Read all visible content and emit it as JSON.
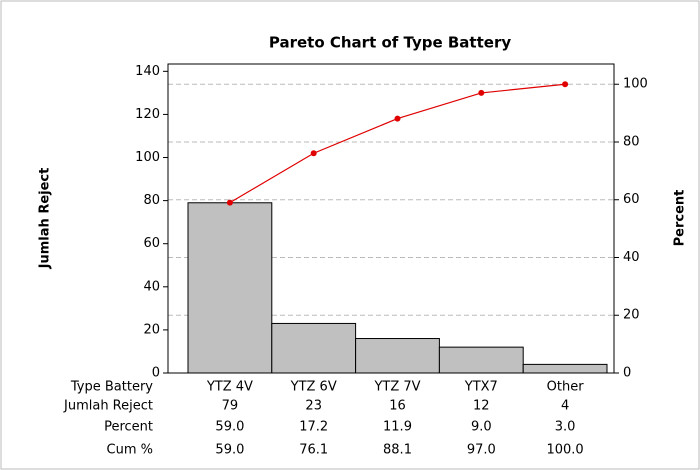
{
  "chart_data": {
    "type": "pareto",
    "title": "Pareto Chart of Type Battery",
    "y_label": "Jumlah Reject",
    "y2_label": "Percent",
    "categories_label": "Type Battery",
    "categories": [
      "YTZ 4V",
      "YTZ 6V",
      "YTZ 7V",
      "YTX7",
      "Other"
    ],
    "series": [
      {
        "name": "Jumlah Reject",
        "color": "#c0c0c0",
        "values": [
          79,
          23,
          16,
          12,
          4
        ]
      },
      {
        "name": "Percent",
        "values": [
          59.0,
          17.2,
          11.9,
          9.0,
          3.0
        ],
        "value_labels": [
          "59.0",
          "17.2",
          "11.9",
          "9.0",
          "3.0"
        ]
      },
      {
        "name": "Cum %",
        "color": "#e00000",
        "axis": "y2",
        "values": [
          59.0,
          76.1,
          88.1,
          97.0,
          100.0
        ],
        "value_labels": [
          "59.0",
          "76.1",
          "88.1",
          "97.0",
          "100.0"
        ]
      }
    ],
    "ylim": [
      0,
      143.4
    ],
    "yticks": [
      0,
      20,
      40,
      60,
      80,
      100,
      120,
      140
    ],
    "y2lim": [
      0,
      107.01
    ],
    "y2ticks": [
      0,
      20,
      40,
      60,
      80,
      100
    ],
    "grid": true
  }
}
